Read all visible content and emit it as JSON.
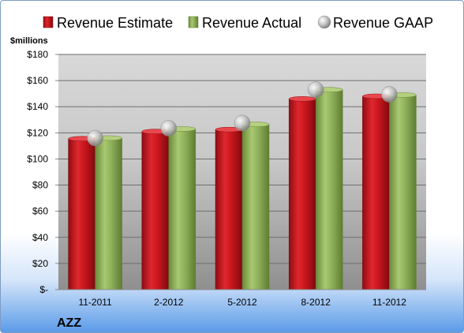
{
  "chart_data": {
    "type": "bar",
    "ticker": "AZZ",
    "ylabel": "$millions",
    "categories": [
      "11-2011",
      "2-2012",
      "5-2012",
      "8-2012",
      "11-2012"
    ],
    "series": [
      {
        "name": "Revenue Estimate",
        "kind": "bar",
        "color": "#c0141b",
        "values": [
          115.5,
          121,
          122.5,
          146,
          148
        ]
      },
      {
        "name": "Revenue Actual",
        "kind": "bar",
        "color": "#8fb05a",
        "values": [
          116,
          123,
          126.5,
          153,
          149
        ]
      },
      {
        "name": "Revenue GAAP",
        "kind": "marker",
        "color": "#b8b8b8",
        "values": [
          116,
          123.5,
          127.5,
          153,
          149.5
        ]
      }
    ],
    "ylim": [
      0,
      180
    ],
    "yticks": [
      0,
      20,
      40,
      60,
      80,
      100,
      120,
      140,
      160,
      180
    ],
    "ytick_labels": [
      "$-",
      "$20",
      "$40",
      "$60",
      "$80",
      "$100",
      "$120",
      "$140",
      "$160",
      "$180"
    ],
    "grid": true,
    "legend_position": "top"
  }
}
